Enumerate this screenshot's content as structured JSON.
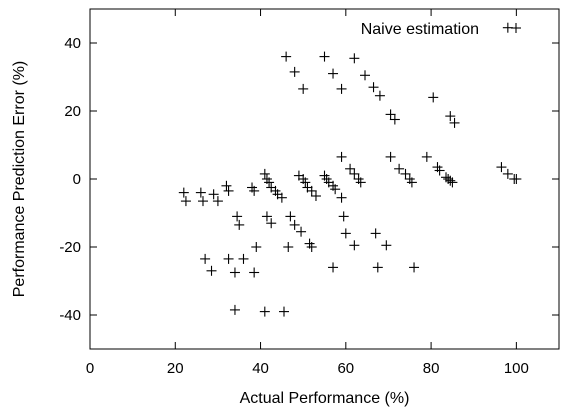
{
  "chart_data": {
    "type": "scatter",
    "title": "",
    "xlabel": "Actual Performance (%)",
    "ylabel": "Performance Prediction Error (%)",
    "xlim": [
      0,
      110
    ],
    "ylim": [
      -50,
      50
    ],
    "xticks": [
      0,
      20,
      40,
      60,
      80,
      100
    ],
    "yticks": [
      -40,
      -20,
      0,
      20,
      40
    ],
    "grid": false,
    "marker": "plus",
    "legend": {
      "position": "top-right"
    },
    "series": [
      {
        "name": "Naive estimation",
        "points": [
          [
            98,
            44.5
          ],
          [
            46,
            36
          ],
          [
            48,
            31.5
          ],
          [
            50,
            26.5
          ],
          [
            55,
            36
          ],
          [
            57,
            31
          ],
          [
            59,
            26.5
          ],
          [
            62,
            35.5
          ],
          [
            64.5,
            30.5
          ],
          [
            66.5,
            27
          ],
          [
            68,
            24.5
          ],
          [
            70.5,
            19
          ],
          [
            71.5,
            17.5
          ],
          [
            80.5,
            24
          ],
          [
            84.5,
            18.5
          ],
          [
            85.5,
            16.5
          ],
          [
            22,
            -4
          ],
          [
            22.5,
            -6.5
          ],
          [
            26,
            -4
          ],
          [
            26.5,
            -6.5
          ],
          [
            29,
            -4.5
          ],
          [
            30,
            -6.5
          ],
          [
            32,
            -2
          ],
          [
            32.5,
            -3.5
          ],
          [
            38,
            -2.5
          ],
          [
            38.5,
            -3.5
          ],
          [
            41,
            1.5
          ],
          [
            41.5,
            0
          ],
          [
            42,
            -1
          ],
          [
            42.5,
            -2.5
          ],
          [
            43.5,
            -3.5
          ],
          [
            44,
            -4.5
          ],
          [
            45,
            -5.5
          ],
          [
            49,
            1
          ],
          [
            50,
            0
          ],
          [
            50.5,
            -1
          ],
          [
            51,
            -2.5
          ],
          [
            52,
            -3.5
          ],
          [
            53,
            -5
          ],
          [
            55,
            1
          ],
          [
            55.5,
            0
          ],
          [
            56,
            -1
          ],
          [
            57,
            -2
          ],
          [
            57.5,
            -3
          ],
          [
            59,
            -5.5
          ],
          [
            59,
            6.5
          ],
          [
            61,
            3
          ],
          [
            62,
            1.5
          ],
          [
            63,
            0
          ],
          [
            63.5,
            -1
          ],
          [
            70.5,
            6.5
          ],
          [
            72.5,
            3
          ],
          [
            74,
            1.5
          ],
          [
            75,
            0
          ],
          [
            75.5,
            -1
          ],
          [
            79,
            6.5
          ],
          [
            81.5,
            3.5
          ],
          [
            82,
            2.5
          ],
          [
            83.5,
            0.5
          ],
          [
            84,
            0
          ],
          [
            84.5,
            -0.5
          ],
          [
            85,
            -1
          ],
          [
            96.5,
            3.5
          ],
          [
            98,
            1.5
          ],
          [
            99.5,
            0
          ],
          [
            100,
            0
          ],
          [
            34.5,
            -11
          ],
          [
            35,
            -13.5
          ],
          [
            41.5,
            -11
          ],
          [
            42.5,
            -13
          ],
          [
            47,
            -11
          ],
          [
            48,
            -13.5
          ],
          [
            49.5,
            -15.5
          ],
          [
            51.5,
            -19
          ],
          [
            52,
            -20
          ],
          [
            59.5,
            -11
          ],
          [
            60,
            -16
          ],
          [
            67,
            -16
          ],
          [
            69.5,
            -19.5
          ],
          [
            27,
            -23.5
          ],
          [
            28.5,
            -27
          ],
          [
            32.5,
            -23.5
          ],
          [
            34,
            -27.5
          ],
          [
            36,
            -23.5
          ],
          [
            38.5,
            -27.5
          ],
          [
            39,
            -20
          ],
          [
            46.5,
            -20
          ],
          [
            57,
            -26
          ],
          [
            62,
            -19.5
          ],
          [
            67.5,
            -26
          ],
          [
            76,
            -26
          ],
          [
            34,
            -38.5
          ],
          [
            41,
            -39
          ],
          [
            45.5,
            -39
          ]
        ]
      }
    ]
  }
}
